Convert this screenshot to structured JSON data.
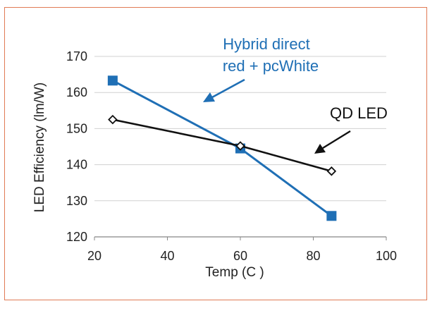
{
  "colors": {
    "frame_border": "#e07a55",
    "hybrid_series": "#1f6fb5",
    "qd_series": "#111111",
    "gridline": "#d0d0d0",
    "axis": "#888888"
  },
  "chart_data": {
    "type": "line",
    "title": "",
    "xlabel": "Temp (C )",
    "ylabel": "LED Efficiency (lm/W)",
    "xlim": [
      20,
      100
    ],
    "ylim": [
      120,
      170
    ],
    "x_ticks": [
      20,
      40,
      60,
      80,
      100
    ],
    "y_ticks": [
      120,
      130,
      140,
      150,
      160,
      170
    ],
    "grid": "horizontal",
    "legend": "none",
    "series": [
      {
        "name": "Hybrid direct red + pcWhite",
        "marker": "filled-square",
        "color": "#1f6fb5",
        "x": [
          25,
          60,
          85
        ],
        "y": [
          163.3,
          144.5,
          125.8
        ]
      },
      {
        "name": "QD LED",
        "marker": "open-diamond",
        "color": "#111111",
        "x": [
          25,
          60,
          85
        ],
        "y": [
          152.5,
          145.2,
          138.2
        ]
      }
    ],
    "annotations": [
      {
        "lines": [
          "Hybrid direct",
          "red + pcWhite"
        ],
        "color": "#1f6fb5"
      },
      {
        "lines": [
          "QD LED"
        ],
        "color": "#111111"
      }
    ]
  }
}
